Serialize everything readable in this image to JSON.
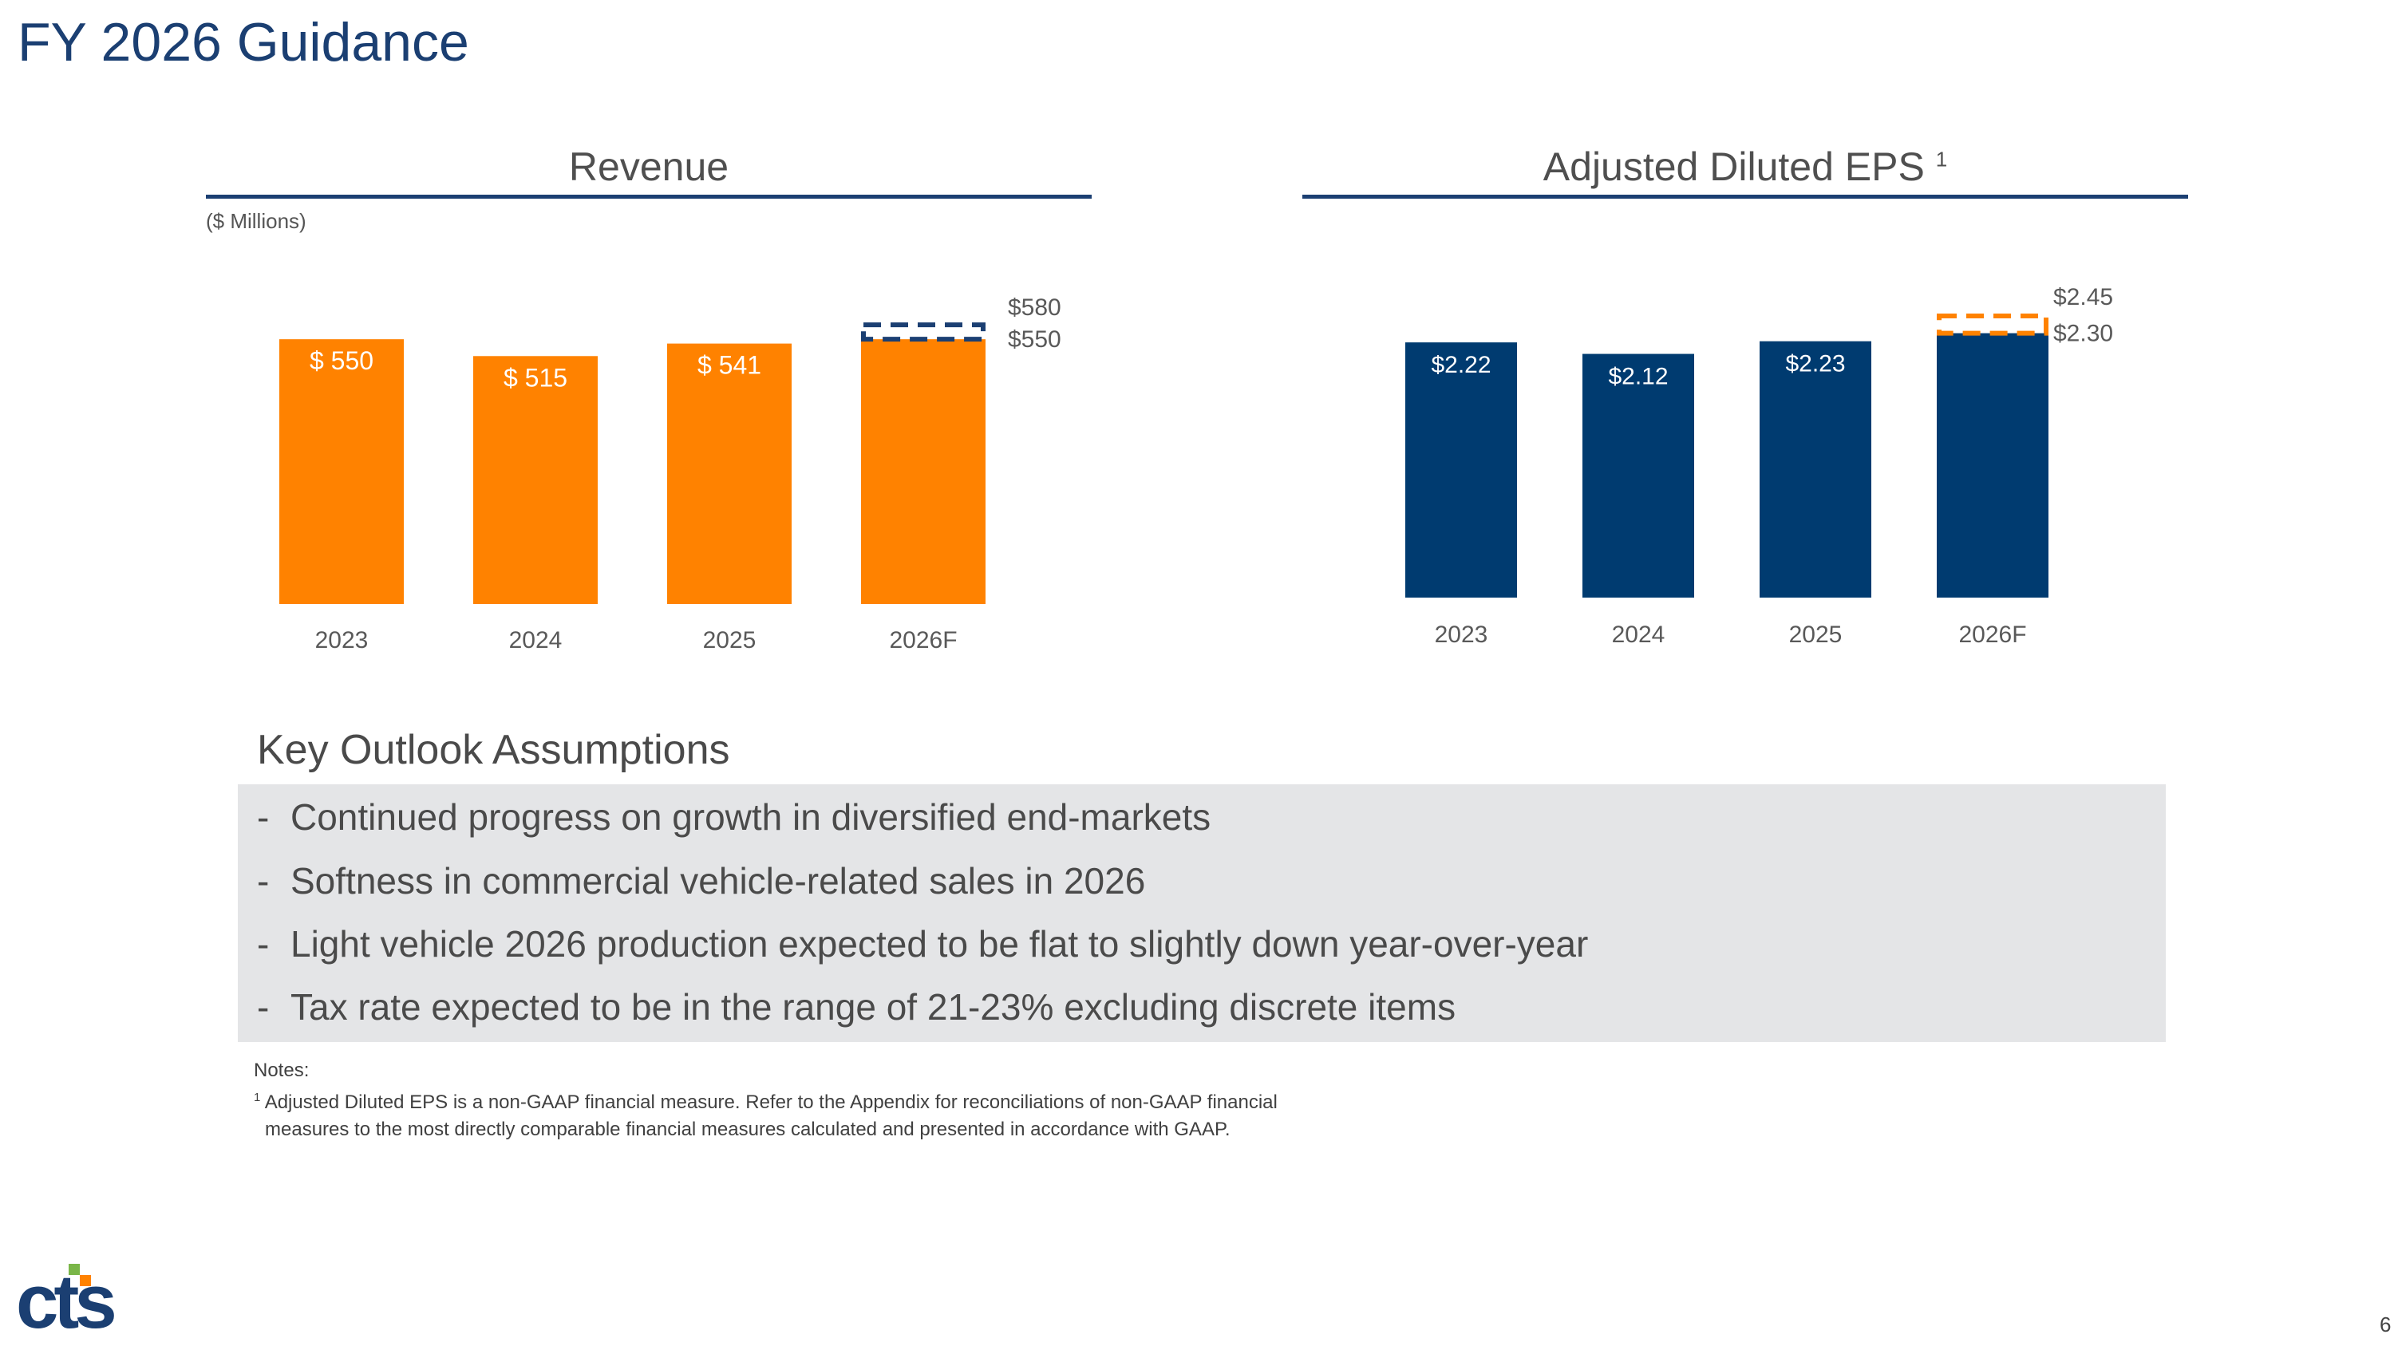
{
  "slide": {
    "title": "FY 2026 Guidance",
    "page_number": "6",
    "logo_text": "cts"
  },
  "colors": {
    "navy": "#1b3f72",
    "orange": "#ff8200",
    "eps_bar": "#003b70",
    "gray_text": "#595959",
    "logo_green": "#7ab648"
  },
  "revenue_chart": {
    "title": "Revenue",
    "units": "($ Millions)"
  },
  "eps_chart": {
    "title": "Adjusted Diluted EPS",
    "footnote_marker": "1"
  },
  "chart_data": [
    {
      "type": "bar",
      "title": "Revenue",
      "subtitle": "($ Millions)",
      "xlabel": "",
      "ylabel": "",
      "categories": [
        "2023",
        "2024",
        "2025",
        "2026F"
      ],
      "values": [
        550,
        515,
        541,
        550
      ],
      "data_labels": [
        "$ 550",
        "$ 515",
        "$ 541",
        ""
      ],
      "guidance_range": {
        "category": "2026F",
        "low": 550,
        "high": 580,
        "low_label": "$550",
        "high_label": "$580"
      },
      "ylim": [
        0,
        600
      ],
      "grid": false,
      "bar_color": "#ff8200",
      "range_color": "#1b3f72"
    },
    {
      "type": "bar",
      "title": "Adjusted Diluted EPS",
      "title_footnote": "1",
      "xlabel": "",
      "ylabel": "",
      "categories": [
        "2023",
        "2024",
        "2025",
        "2026F"
      ],
      "values": [
        2.22,
        2.12,
        2.23,
        2.3
      ],
      "data_labels": [
        "$2.22",
        "$2.12",
        "$2.23",
        ""
      ],
      "guidance_range": {
        "category": "2026F",
        "low": 2.3,
        "high": 2.45,
        "low_label": "$2.30",
        "high_label": "$2.45"
      },
      "ylim": [
        0,
        2.45
      ],
      "grid": false,
      "bar_color": "#003b70",
      "range_color": "#ff8200"
    }
  ],
  "outlook": {
    "heading": "Key Outlook Assumptions",
    "bullet_marker": "-",
    "items": [
      "Continued progress on growth in diversified end-markets",
      "Softness in commercial vehicle-related sales in 2026",
      "Light vehicle 2026 production expected to be flat to slightly down year-over-year",
      "Tax rate expected to be in the range of 21-23% excluding discrete items"
    ]
  },
  "notes": {
    "label": "Notes:",
    "footnote_number": "1",
    "footnote_line1": "Adjusted Diluted EPS is a non-GAAP financial measure. Refer to the Appendix for reconciliations of non-GAAP financial",
    "footnote_line2": "measures to the most directly comparable financial measures calculated and presented in accordance with GAAP."
  }
}
